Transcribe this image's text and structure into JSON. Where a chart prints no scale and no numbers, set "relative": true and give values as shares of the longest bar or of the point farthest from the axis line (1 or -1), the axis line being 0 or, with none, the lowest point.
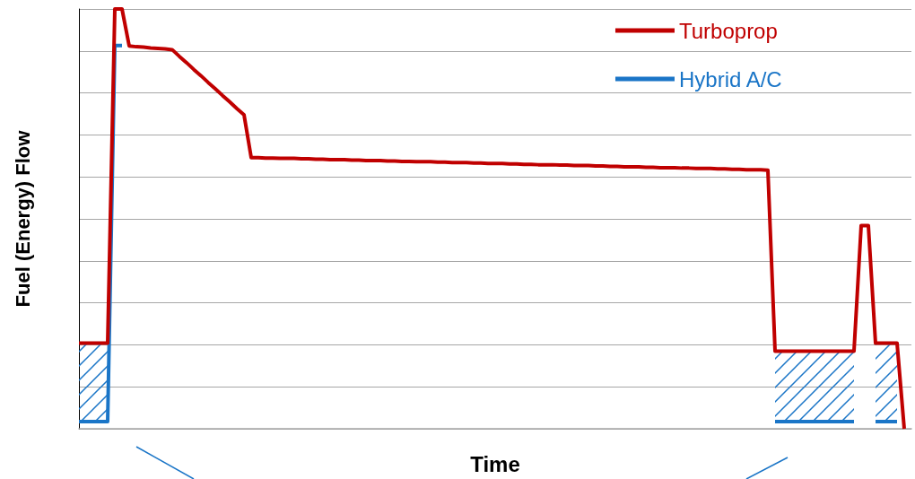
{
  "chart_data": {
    "type": "line",
    "xlabel": "Time",
    "ylabel": "Fuel (Energy) Flow",
    "relative": true,
    "grid": "y",
    "legend": "top right",
    "marker": "none",
    "line_style": "solid",
    "categories": [
      null,
      null,
      null,
      null,
      null,
      null,
      null,
      null,
      null,
      null,
      null,
      null,
      null,
      null,
      null,
      null,
      null,
      null,
      null,
      null,
      null,
      null,
      null,
      null,
      null,
      null,
      null,
      null,
      null,
      null,
      null,
      null,
      null,
      null,
      null,
      null,
      null,
      null,
      null,
      null,
      null,
      null,
      null,
      null,
      null,
      null,
      null,
      null,
      null,
      null,
      null,
      null,
      null,
      null,
      null,
      null,
      null,
      null,
      null,
      null,
      null,
      null,
      null,
      null,
      null,
      null,
      null,
      null,
      null,
      null,
      null,
      null,
      null,
      null,
      null,
      null,
      null,
      null,
      null,
      null,
      null,
      null,
      null,
      null,
      null,
      null,
      null,
      null,
      null,
      null,
      null,
      null,
      null,
      null,
      null,
      null,
      null,
      null,
      null,
      null,
      null,
      null,
      null,
      null,
      null,
      null,
      null,
      null,
      null,
      null,
      null,
      null,
      null,
      null,
      null,
      null,
      null
    ],
    "series": [
      {
        "name": "Turboprop",
        "color": "#c00000",
        "values": [
          0.204,
          0.204,
          0.204,
          0.204,
          0.204,
          1.0,
          1.0,
          0.912,
          0.91,
          0.909,
          0.907,
          0.906,
          0.905,
          0.903,
          0.887,
          0.872,
          0.856,
          0.841,
          0.825,
          0.81,
          0.794,
          0.779,
          0.763,
          0.748,
          0.646,
          0.646,
          0.645,
          0.645,
          0.644,
          0.644,
          0.644,
          0.643,
          0.643,
          0.642,
          0.642,
          0.641,
          0.641,
          0.641,
          0.64,
          0.64,
          0.639,
          0.639,
          0.639,
          0.638,
          0.638,
          0.637,
          0.637,
          0.636,
          0.636,
          0.636,
          0.635,
          0.635,
          0.634,
          0.634,
          0.634,
          0.633,
          0.633,
          0.632,
          0.632,
          0.632,
          0.631,
          0.631,
          0.63,
          0.63,
          0.629,
          0.629,
          0.629,
          0.628,
          0.628,
          0.627,
          0.627,
          0.627,
          0.626,
          0.626,
          0.625,
          0.625,
          0.624,
          0.624,
          0.624,
          0.623,
          0.623,
          0.622,
          0.622,
          0.622,
          0.621,
          0.621,
          0.62,
          0.62,
          0.62,
          0.619,
          0.619,
          0.618,
          0.618,
          0.617,
          0.617,
          0.617,
          0.616,
          0.185,
          0.185,
          0.185,
          0.185,
          0.185,
          0.185,
          0.185,
          0.185,
          0.185,
          0.185,
          0.185,
          0.185,
          0.484,
          0.484,
          0.204,
          0.204,
          0.204,
          0.204,
          0,
          null
        ]
      },
      {
        "name": "Hybrid A/C",
        "color": "#1a75c7",
        "values": [
          0.017,
          0.017,
          0.017,
          0.017,
          0.017,
          0.913,
          0.913,
          null,
          null,
          null,
          null,
          null,
          null,
          null,
          null,
          null,
          null,
          null,
          null,
          null,
          null,
          null,
          null,
          null,
          null,
          null,
          null,
          null,
          null,
          null,
          null,
          null,
          null,
          null,
          null,
          null,
          null,
          null,
          null,
          null,
          null,
          null,
          null,
          null,
          null,
          null,
          null,
          null,
          null,
          null,
          null,
          null,
          null,
          null,
          null,
          null,
          null,
          null,
          null,
          null,
          null,
          null,
          null,
          null,
          null,
          null,
          null,
          null,
          null,
          null,
          null,
          null,
          null,
          null,
          null,
          null,
          null,
          null,
          null,
          null,
          null,
          null,
          null,
          null,
          null,
          null,
          null,
          null,
          null,
          null,
          null,
          null,
          null,
          null,
          null,
          null,
          null,
          0.017,
          0.017,
          0.017,
          0.017,
          0.017,
          0.017,
          0.017,
          0.017,
          0.017,
          0.017,
          0.017,
          0.017,
          null,
          null,
          0.017,
          0.017,
          0.017,
          0.017,
          null,
          null
        ],
        "lower": [
          0.017,
          0.017,
          0.017,
          0.017,
          0.017,
          null,
          null,
          null,
          null,
          null,
          null,
          null,
          null,
          null,
          null,
          null,
          null,
          null,
          null,
          null,
          null,
          null,
          null,
          null,
          null,
          null,
          null,
          null,
          null,
          null,
          null,
          null,
          null,
          null,
          null,
          null,
          null,
          null,
          null,
          null,
          null,
          null,
          null,
          null,
          null,
          null,
          null,
          null,
          null,
          null,
          null,
          null,
          null,
          null,
          null,
          null,
          null,
          null,
          null,
          null,
          null,
          null,
          null,
          null,
          null,
          null,
          null,
          null,
          null,
          null,
          null,
          null,
          null,
          null,
          null,
          null,
          null,
          null,
          null,
          null,
          null,
          null,
          null,
          null,
          null,
          null,
          null,
          null,
          null,
          null,
          null,
          null,
          null,
          null,
          null,
          null,
          null,
          0.017,
          0.017,
          0.017,
          0.017,
          0.017,
          0.017,
          0.017,
          0.017,
          0.017,
          0.017,
          0.017,
          0.017,
          null,
          null,
          0.017,
          0.017,
          0.017,
          0.017,
          null,
          null
        ],
        "upper": [
          0.204,
          0.204,
          0.204,
          0.204,
          0.204,
          null,
          null,
          null,
          null,
          null,
          null,
          null,
          null,
          null,
          null,
          null,
          null,
          null,
          null,
          null,
          null,
          null,
          null,
          null,
          null,
          null,
          null,
          null,
          null,
          null,
          null,
          null,
          null,
          null,
          null,
          null,
          null,
          null,
          null,
          null,
          null,
          null,
          null,
          null,
          null,
          null,
          null,
          null,
          null,
          null,
          null,
          null,
          null,
          null,
          null,
          null,
          null,
          null,
          null,
          null,
          null,
          null,
          null,
          null,
          null,
          null,
          null,
          null,
          null,
          null,
          null,
          null,
          null,
          null,
          null,
          null,
          null,
          null,
          null,
          null,
          null,
          null,
          null,
          null,
          null,
          null,
          null,
          null,
          null,
          null,
          null,
          null,
          null,
          null,
          null,
          null,
          null,
          0.185,
          0.185,
          0.185,
          0.185,
          0.185,
          0.185,
          0.185,
          0.185,
          0.185,
          0.185,
          0.185,
          0.185,
          null,
          null,
          0.204,
          0.204,
          0.204,
          0.204,
          null,
          null
        ]
      }
    ]
  }
}
